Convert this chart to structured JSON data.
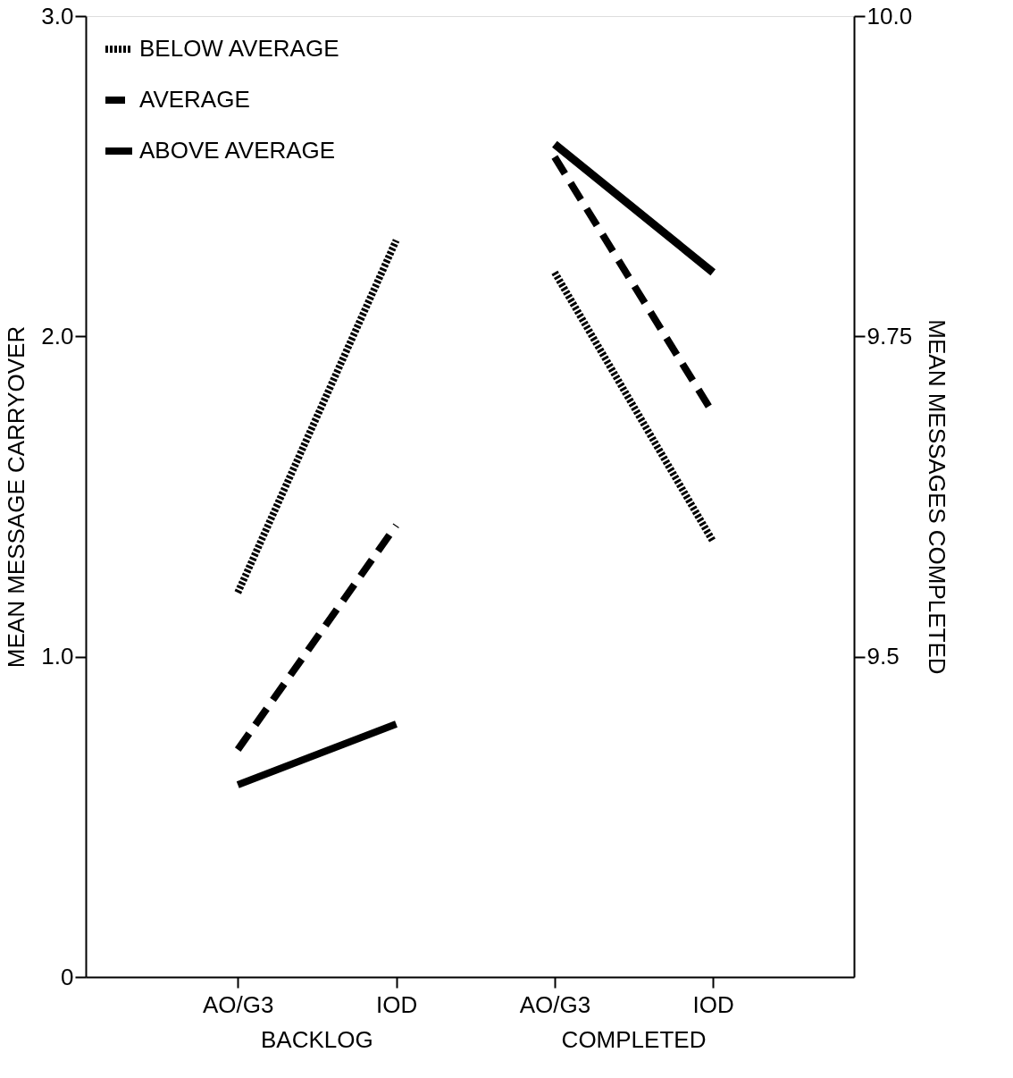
{
  "chart_data": {
    "type": "line",
    "categories": [
      "AO/G3",
      "IOD",
      "AO/G3",
      "IOD"
    ],
    "ylabel": "MEAN MESSAGE CARRYOVER",
    "y2label": "MEAN MESSAGES COMPLETED",
    "ylim": [
      0,
      3.0
    ],
    "yticks": [
      0,
      {
        "value": 1,
        "label": "1.0"
      },
      {
        "value": 2,
        "label": "2.0"
      },
      {
        "value": 3,
        "label": "3.0"
      }
    ],
    "y2lim": [
      9.25,
      10.0
    ],
    "y2ticks": [
      9.5,
      9.75,
      {
        "value": 10,
        "label": "10.0"
      }
    ],
    "series": [
      {
        "name": "BELOW AVERAGE",
        "color": "#000000",
        "line_style": "dotted",
        "values": [
          1.2,
          2.3,
          null,
          null
        ]
      },
      {
        "name": "AVERAGE",
        "color": "#000000",
        "line_style": "dashed",
        "values": [
          0.71,
          1.41,
          null,
          null
        ]
      },
      {
        "name": "ABOVE AVERAGE",
        "color": "#000000",
        "line_style": "solid",
        "values": [
          0.6,
          0.79,
          null,
          null
        ]
      },
      {
        "color": "#000000",
        "line_style": "dotted",
        "axis": "y2",
        "values": [
          null,
          null,
          9.8,
          9.59
        ]
      },
      {
        "color": "#000000",
        "line_style": "dashed",
        "axis": "y2",
        "values": [
          null,
          null,
          9.89,
          9.69
        ]
      },
      {
        "color": "#000000",
        "line_style": "solid",
        "axis": "y2",
        "values": [
          null,
          null,
          9.9,
          9.8
        ]
      }
    ],
    "annotations": [
      "BACKLOG",
      "COMPLETED"
    ],
    "legend": "top left",
    "grid": false
  }
}
